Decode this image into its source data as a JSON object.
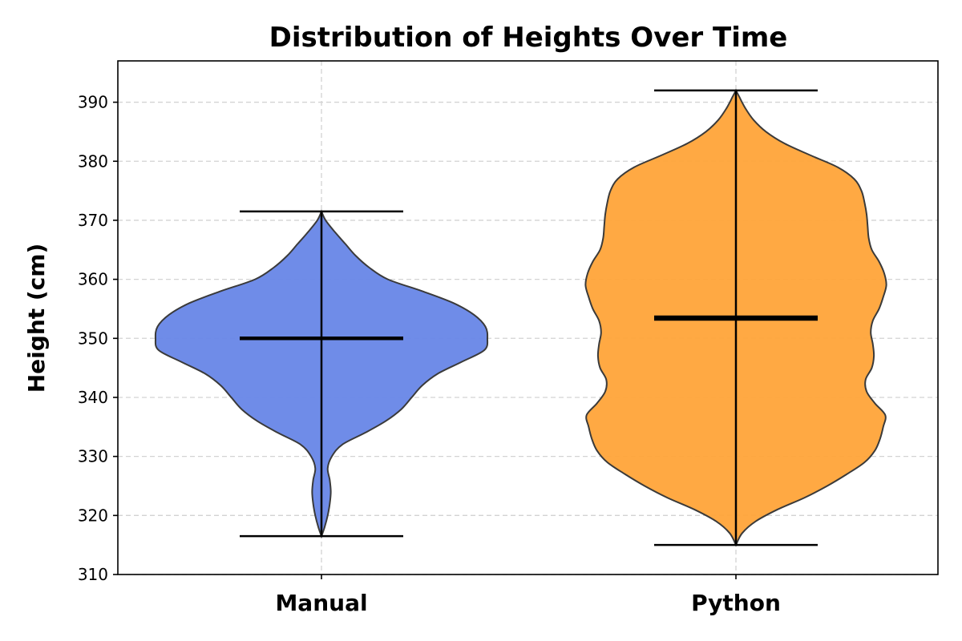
{
  "chart_data": {
    "type": "violin",
    "title": "Distribution of Heights Over Time",
    "xlabel": "",
    "ylabel": "Height (cm)",
    "ylim": [
      310,
      397
    ],
    "yticks": [
      310,
      320,
      330,
      340,
      350,
      360,
      370,
      380,
      390
    ],
    "grid": true,
    "categories": [
      "Manual",
      "Python"
    ],
    "series": [
      {
        "category": "Manual",
        "color": "#6a88e8",
        "min": 316.5,
        "max": 371.5,
        "median": 350,
        "mean": 350,
        "density": [
          [
            316.5,
            0
          ],
          [
            318,
            0.03
          ],
          [
            320,
            0.06
          ],
          [
            322,
            0.08
          ],
          [
            324,
            0.09
          ],
          [
            326,
            0.08
          ],
          [
            328,
            0.06
          ],
          [
            330,
            0.1
          ],
          [
            332,
            0.2
          ],
          [
            334,
            0.42
          ],
          [
            336,
            0.62
          ],
          [
            338,
            0.77
          ],
          [
            340,
            0.87
          ],
          [
            342,
            0.97
          ],
          [
            344,
            1.12
          ],
          [
            346,
            1.35
          ],
          [
            348,
            1.57
          ],
          [
            350,
            1.6
          ],
          [
            352,
            1.58
          ],
          [
            354,
            1.47
          ],
          [
            356,
            1.27
          ],
          [
            358,
            0.97
          ],
          [
            360,
            0.64
          ],
          [
            362,
            0.46
          ],
          [
            364,
            0.33
          ],
          [
            366,
            0.23
          ],
          [
            368,
            0.13
          ],
          [
            370,
            0.04
          ],
          [
            371.5,
            0
          ]
        ]
      },
      {
        "category": "Python",
        "color": "#ffa63c",
        "min": 315,
        "max": 392,
        "median": 353.3,
        "mean": 353.7,
        "density": [
          [
            315,
            0
          ],
          [
            317,
            0.06
          ],
          [
            319,
            0.19
          ],
          [
            321,
            0.4
          ],
          [
            323,
            0.66
          ],
          [
            325,
            0.88
          ],
          [
            327,
            1.07
          ],
          [
            329,
            1.24
          ],
          [
            331,
            1.34
          ],
          [
            333,
            1.39
          ],
          [
            335,
            1.42
          ],
          [
            337,
            1.44
          ],
          [
            339,
            1.34
          ],
          [
            341,
            1.26
          ],
          [
            343,
            1.25
          ],
          [
            345,
            1.31
          ],
          [
            347,
            1.33
          ],
          [
            349,
            1.32
          ],
          [
            351,
            1.3
          ],
          [
            353,
            1.32
          ],
          [
            355,
            1.38
          ],
          [
            357,
            1.42
          ],
          [
            359,
            1.45
          ],
          [
            361,
            1.43
          ],
          [
            363,
            1.38
          ],
          [
            365,
            1.31
          ],
          [
            367,
            1.28
          ],
          [
            369,
            1.27
          ],
          [
            371,
            1.26
          ],
          [
            373,
            1.24
          ],
          [
            375,
            1.21
          ],
          [
            377,
            1.14
          ],
          [
            379,
            0.98
          ],
          [
            381,
            0.72
          ],
          [
            383,
            0.47
          ],
          [
            385,
            0.29
          ],
          [
            387,
            0.17
          ],
          [
            389,
            0.09
          ],
          [
            391,
            0.03
          ],
          [
            392,
            0
          ]
        ]
      }
    ]
  }
}
